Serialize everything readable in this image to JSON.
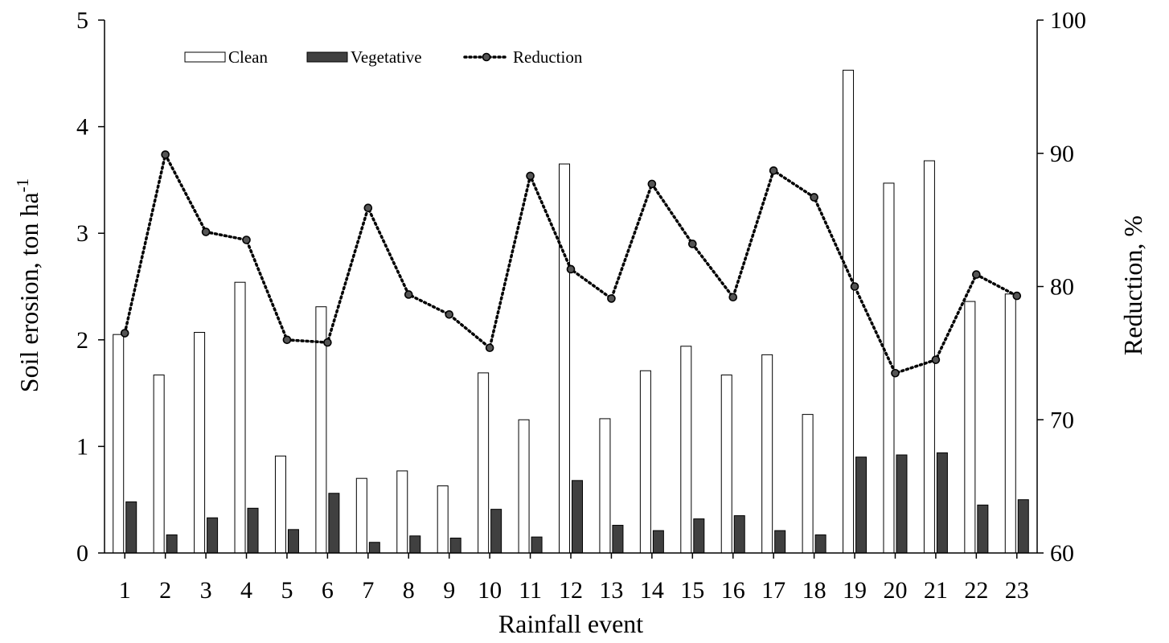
{
  "chart_data": {
    "type": "bar",
    "categories": [
      "1",
      "2",
      "3",
      "4",
      "5",
      "6",
      "7",
      "8",
      "9",
      "10",
      "11",
      "12",
      "13",
      "14",
      "15",
      "16",
      "17",
      "18",
      "19",
      "20",
      "21",
      "22",
      "23"
    ],
    "series": [
      {
        "name": "Clean",
        "type": "bar",
        "axis": "left",
        "color": "#ffffff",
        "values": [
          2.05,
          1.67,
          2.07,
          2.54,
          0.91,
          2.31,
          0.7,
          0.77,
          0.63,
          1.69,
          1.25,
          3.65,
          1.26,
          1.71,
          1.94,
          1.67,
          1.86,
          1.3,
          4.53,
          3.47,
          3.68,
          2.36,
          2.43
        ]
      },
      {
        "name": "Vegetative",
        "type": "bar",
        "axis": "left",
        "color": "#404040",
        "values": [
          0.48,
          0.17,
          0.33,
          0.42,
          0.22,
          0.56,
          0.1,
          0.16,
          0.14,
          0.41,
          0.15,
          0.68,
          0.26,
          0.21,
          0.32,
          0.35,
          0.21,
          0.17,
          0.9,
          0.92,
          0.94,
          0.45,
          0.5
        ]
      },
      {
        "name": "Reduction",
        "type": "line",
        "axis": "right",
        "color": "#000000",
        "values": [
          76.5,
          89.9,
          84.1,
          83.5,
          76.0,
          75.8,
          85.9,
          79.4,
          77.9,
          75.4,
          88.3,
          81.3,
          79.1,
          87.7,
          83.2,
          79.2,
          88.7,
          86.7,
          80.0,
          73.5,
          74.5,
          80.9,
          79.3
        ]
      }
    ],
    "xlabel": "Rainfall event",
    "ylabel": "Soil erosion, ton ha",
    "ylabel_sup": "-1",
    "y2label": "Reduction, %",
    "ylim": [
      0,
      5
    ],
    "y2lim": [
      60,
      100
    ],
    "yticks": [
      "0",
      "1",
      "2",
      "3",
      "4",
      "5"
    ],
    "y2ticks": [
      "60",
      "70",
      "80",
      "90",
      "100"
    ],
    "grid": false,
    "legend_position": "top-left"
  }
}
